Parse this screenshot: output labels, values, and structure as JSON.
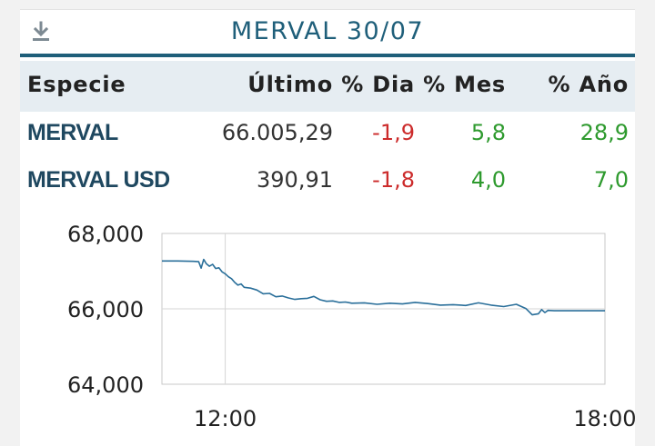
{
  "header": {
    "title": "MERVAL 30/07",
    "download_icon": "download-icon"
  },
  "table": {
    "columns": [
      "Especie",
      "Último",
      "% Dia",
      "% Mes",
      "% Año"
    ],
    "rows": [
      {
        "especie": "MERVAL",
        "ultimo": "66.005,29",
        "dia": "-1,9",
        "mes": "5,8",
        "anio": "28,9"
      },
      {
        "especie": "MERVAL USD",
        "ultimo": "390,91",
        "dia": "-1,8",
        "mes": "4,0",
        "anio": "7,0"
      }
    ]
  },
  "colors": {
    "accent": "#1f5f7a",
    "negative": "#cc2b2b",
    "positive": "#2e9a2e",
    "line": "#2a6f9a"
  },
  "chart_data": {
    "type": "line",
    "title": "",
    "xlabel": "",
    "ylabel": "",
    "x_ticks": [
      "12:00",
      "18:00"
    ],
    "y_ticks": [
      "68,000",
      "66,000",
      "64,000"
    ],
    "xlim": [
      11.0,
      18.0
    ],
    "ylim": [
      64000,
      68000
    ],
    "grid": true,
    "series": [
      {
        "x": [
          11.0,
          11.25,
          11.5,
          11.58,
          11.62,
          11.66,
          11.7,
          11.75,
          11.8,
          11.85,
          11.9,
          11.95,
          12.0,
          12.05,
          12.1,
          12.15,
          12.2,
          12.25,
          12.3,
          12.4,
          12.5,
          12.6,
          12.7,
          12.8,
          12.9,
          13.0,
          13.1,
          13.2,
          13.3,
          13.4,
          13.5,
          13.6,
          13.7,
          13.8,
          13.9,
          14.0,
          14.2,
          14.4,
          14.6,
          14.8,
          15.0,
          15.2,
          15.4,
          15.6,
          15.8,
          16.0,
          16.2,
          16.4,
          16.6,
          16.75,
          16.85,
          16.95,
          17.0,
          17.05,
          17.1,
          17.2,
          17.4,
          17.6,
          17.8,
          18.0
        ],
        "y": [
          67270,
          67270,
          67260,
          67250,
          67080,
          67310,
          67200,
          67130,
          67180,
          67070,
          67090,
          66980,
          66930,
          66850,
          66800,
          66700,
          66630,
          66660,
          66570,
          66550,
          66500,
          66400,
          66410,
          66320,
          66340,
          66290,
          66250,
          66270,
          66280,
          66330,
          66240,
          66200,
          66210,
          66170,
          66180,
          66150,
          66160,
          66120,
          66150,
          66130,
          66170,
          66140,
          66100,
          66110,
          66090,
          66160,
          66100,
          66060,
          66120,
          66010,
          65840,
          65870,
          65980,
          65900,
          65960,
          65950,
          65950,
          65950,
          65950,
          65950
        ]
      }
    ]
  }
}
